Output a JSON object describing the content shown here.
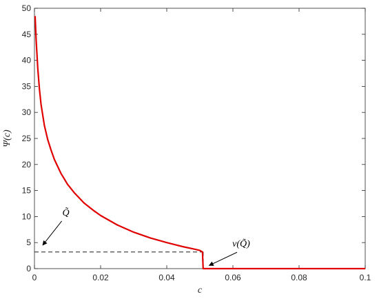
{
  "chart_data": {
    "type": "line",
    "xlabel": "c",
    "ylabel": "Ψ(c)",
    "xlim": [
      0,
      0.1
    ],
    "ylim": [
      0,
      50
    ],
    "xticks": [
      0,
      0.02,
      0.04,
      0.06,
      0.08,
      0.1
    ],
    "xtick_labels": [
      "0",
      "0.02",
      "0.04",
      "0.06",
      "0.08",
      "0.1"
    ],
    "yticks": [
      0,
      5,
      10,
      15,
      20,
      25,
      30,
      35,
      40,
      45,
      50
    ],
    "ytick_labels": [
      "0",
      "5",
      "10",
      "15",
      "20",
      "25",
      "30",
      "35",
      "40",
      "45",
      "50"
    ],
    "grid": false,
    "series": [
      {
        "color": "#e00000",
        "style": "solid",
        "x": [
          0.0002,
          0.0005,
          0.001,
          0.0015,
          0.002,
          0.003,
          0.004,
          0.005,
          0.006,
          0.008,
          0.01,
          0.012,
          0.015,
          0.018,
          0.02,
          0.025,
          0.03,
          0.035,
          0.04,
          0.045,
          0.048,
          0.05,
          0.0508,
          0.051,
          0.052,
          0.06,
          0.07,
          0.08,
          0.09,
          0.1
        ],
        "y": [
          48.5,
          44.0,
          38.5,
          34.5,
          31.5,
          27.5,
          24.8,
          22.8,
          21.0,
          18.3,
          16.2,
          14.6,
          12.6,
          11.1,
          10.2,
          8.4,
          7.0,
          5.9,
          5.0,
          4.2,
          3.8,
          3.5,
          3.2,
          0,
          0,
          0,
          0,
          0,
          0,
          0
        ]
      }
    ],
    "reference_lines": [
      {
        "style": "dashed",
        "color": "#333333",
        "x": [
          0,
          0.051
        ],
        "y": [
          3.2,
          3.2
        ]
      },
      {
        "style": "dashed",
        "color": "#333333",
        "x": [
          0.051,
          0.051
        ],
        "y": [
          3.2,
          0
        ]
      }
    ],
    "annotations": [
      {
        "text": "Q̃",
        "text_at": [
          0.0095,
          10.2
        ],
        "arrow_to": [
          0.0025,
          4.5
        ]
      },
      {
        "text": "ν(Q̃)",
        "text_at": [
          0.0625,
          4.2
        ],
        "arrow_to": [
          0.0528,
          0.6
        ]
      }
    ]
  }
}
